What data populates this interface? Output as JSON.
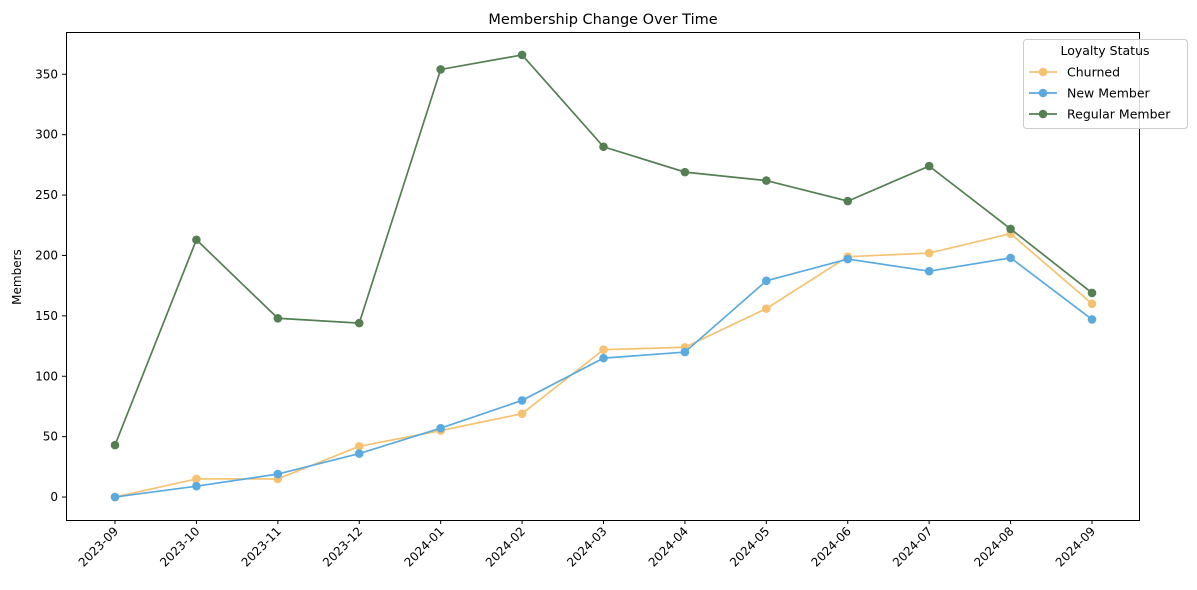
{
  "chart_data": {
    "type": "line",
    "title": "Membership Change Over Time",
    "xlabel": "",
    "ylabel": "Members",
    "categories": [
      "2023-09",
      "2023-10",
      "2023-11",
      "2023-12",
      "2024-01",
      "2024-02",
      "2024-03",
      "2024-04",
      "2024-05",
      "2024-06",
      "2024-07",
      "2024-08",
      "2024-09"
    ],
    "ylim": [
      -19,
      385
    ],
    "yticks": [
      0,
      50,
      100,
      150,
      200,
      250,
      300,
      350
    ],
    "grid": false,
    "legend": {
      "title": "Loyalty Status",
      "placement": "top-right"
    },
    "series": [
      {
        "name": "Churned",
        "color": "#f6c272",
        "values": [
          0,
          15,
          15,
          42,
          55,
          69,
          122,
          124,
          156,
          199,
          202,
          218,
          160
        ]
      },
      {
        "name": "New Member",
        "color": "#5aaadf",
        "values": [
          0,
          9,
          19,
          36,
          57,
          80,
          115,
          120,
          179,
          197,
          187,
          198,
          147
        ]
      },
      {
        "name": "Regular Member",
        "color": "#537f52",
        "values": [
          43,
          213,
          148,
          144,
          354,
          366,
          290,
          269,
          262,
          245,
          274,
          222,
          169
        ]
      }
    ]
  }
}
